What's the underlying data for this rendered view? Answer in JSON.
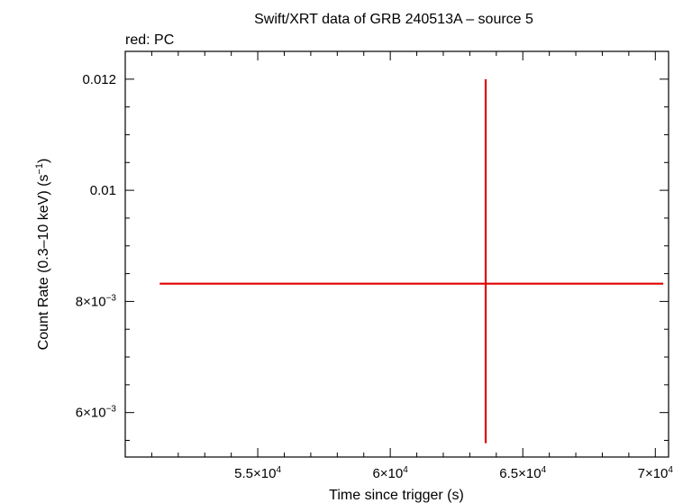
{
  "chart_data": {
    "type": "scatter",
    "title": "Swift/XRT data of GRB 240513A – source 5",
    "subtitle": "red: PC",
    "xlabel": "Time since trigger (s)",
    "ylabel_main": "Count Rate (0.3–10 keV) (s",
    "ylabel_sup": "−1",
    "ylabel_close": ")",
    "xlim": [
      50000,
      70500
    ],
    "ylim": [
      0.0052,
      0.0125
    ],
    "x_ticks": [
      {
        "value": 55000,
        "mant": "5.5×10",
        "exp": "4"
      },
      {
        "value": 60000,
        "mant": "6×10",
        "exp": "4"
      },
      {
        "value": 65000,
        "mant": "6.5×10",
        "exp": "4"
      },
      {
        "value": 70000,
        "mant": "7×10",
        "exp": "4"
      }
    ],
    "y_ticks": [
      {
        "value": 0.006,
        "mant": "6×10",
        "exp": "−3"
      },
      {
        "value": 0.008,
        "mant": "8×10",
        "exp": "−3"
      },
      {
        "value": 0.01,
        "mant": "0.01",
        "exp": ""
      },
      {
        "value": 0.012,
        "mant": "0.012",
        "exp": ""
      }
    ],
    "series": [
      {
        "color": "#e00000",
        "points": [
          {
            "x": 63600,
            "x_lo": 51300,
            "x_hi": 70300,
            "y": 0.00832,
            "y_lo": 0.00545,
            "y_hi": 0.012
          }
        ]
      }
    ]
  }
}
